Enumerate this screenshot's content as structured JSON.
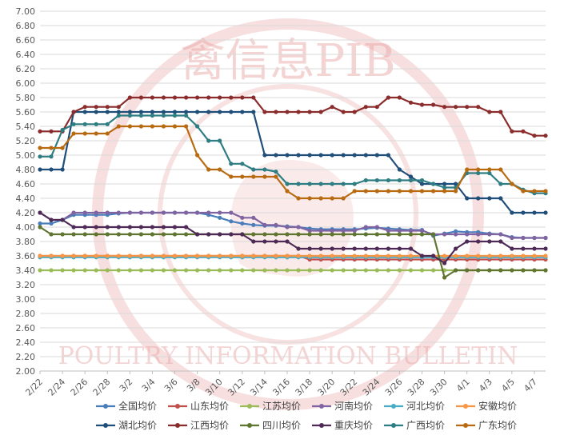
{
  "watermark": {
    "top_text": "禽信息PIB",
    "bottom_text": "POULTRY INFORMATION BULLETIN",
    "color": "#e9a3a3"
  },
  "chart_data": {
    "type": "line",
    "ylim": [
      2.0,
      7.0
    ],
    "ystep": 0.2,
    "y_ticks": [
      "2.00",
      "2.20",
      "2.40",
      "2.60",
      "2.80",
      "3.00",
      "3.20",
      "3.40",
      "3.60",
      "3.80",
      "4.00",
      "4.20",
      "4.40",
      "4.60",
      "4.80",
      "5.00",
      "5.20",
      "5.40",
      "5.60",
      "5.80",
      "6.00",
      "6.20",
      "6.40",
      "6.60",
      "6.80",
      "7.00"
    ],
    "x_tick_labels": [
      "2/22",
      "2/24",
      "2/26",
      "2/28",
      "3/2",
      "3/4",
      "3/6",
      "3/8",
      "3/10",
      "3/12",
      "3/14",
      "3/16",
      "3/18",
      "3/20",
      "3/22",
      "3/24",
      "3/26",
      "3/28",
      "3/30",
      "4/1",
      "4/3",
      "4/5",
      "4/7"
    ],
    "x_count": 46,
    "grid": true,
    "legend_position": "bottom",
    "series": [
      {
        "name": "全国均价",
        "color": "#4a7ebb",
        "values": [
          4.05,
          4.05,
          4.1,
          4.17,
          4.17,
          4.17,
          4.17,
          4.19,
          4.2,
          4.2,
          4.2,
          4.2,
          4.2,
          4.2,
          4.2,
          4.17,
          4.13,
          4.08,
          4.05,
          4.03,
          4.02,
          4.02,
          4.01,
          4.0,
          3.98,
          3.97,
          3.97,
          3.97,
          3.97,
          3.98,
          3.99,
          3.98,
          3.97,
          3.96,
          3.96,
          3.88,
          3.91,
          3.94,
          3.93,
          3.93,
          3.91,
          3.9,
          3.86,
          3.85,
          3.85,
          3.85
        ]
      },
      {
        "name": "山东均价",
        "color": "#c0504d",
        "values": [
          3.6,
          3.6,
          3.6,
          3.6,
          3.6,
          3.6,
          3.6,
          3.6,
          3.6,
          3.6,
          3.6,
          3.6,
          3.6,
          3.6,
          3.6,
          3.6,
          3.6,
          3.6,
          3.6,
          3.6,
          3.6,
          3.6,
          3.6,
          3.6,
          3.55,
          3.55,
          3.55,
          3.55,
          3.55,
          3.55,
          3.55,
          3.55,
          3.55,
          3.55,
          3.55,
          3.55,
          3.55,
          3.55,
          3.55,
          3.55,
          3.55,
          3.55,
          3.55,
          3.55,
          3.55,
          3.55
        ]
      },
      {
        "name": "江苏均价",
        "color": "#9bbb59",
        "values": [
          3.4,
          3.4,
          3.4,
          3.4,
          3.4,
          3.4,
          3.4,
          3.4,
          3.4,
          3.4,
          3.4,
          3.4,
          3.4,
          3.4,
          3.4,
          3.4,
          3.4,
          3.4,
          3.4,
          3.4,
          3.4,
          3.4,
          3.4,
          3.4,
          3.4,
          3.4,
          3.4,
          3.4,
          3.4,
          3.4,
          3.4,
          3.4,
          3.4,
          3.4,
          3.4,
          3.4,
          3.4,
          3.4,
          3.4,
          3.4,
          3.4,
          3.4,
          3.4,
          3.4,
          3.4,
          3.4
        ]
      },
      {
        "name": "河南均价",
        "color": "#8064a2",
        "values": [
          4.2,
          4.1,
          4.1,
          4.2,
          4.2,
          4.2,
          4.2,
          4.2,
          4.2,
          4.2,
          4.2,
          4.2,
          4.2,
          4.2,
          4.2,
          4.2,
          4.2,
          4.2,
          4.13,
          4.13,
          4.03,
          4.03,
          4.0,
          4.0,
          3.95,
          3.95,
          3.95,
          3.95,
          3.95,
          4.0,
          4.0,
          3.95,
          3.95,
          3.95,
          3.95,
          3.9,
          3.9,
          3.9,
          3.9,
          3.9,
          3.9,
          3.9,
          3.85,
          3.85,
          3.85,
          3.85
        ]
      },
      {
        "name": "河北均价",
        "color": "#4bacc6",
        "values": [
          3.58,
          3.58,
          3.58,
          3.58,
          3.58,
          3.58,
          3.58,
          3.58,
          3.58,
          3.58,
          3.58,
          3.58,
          3.58,
          3.58,
          3.58,
          3.58,
          3.58,
          3.58,
          3.58,
          3.58,
          3.58,
          3.58,
          3.58,
          3.58,
          3.58,
          3.58,
          3.58,
          3.58,
          3.58,
          3.58,
          3.58,
          3.58,
          3.58,
          3.58,
          3.58,
          3.58,
          3.58,
          3.58,
          3.58,
          3.58,
          3.58,
          3.58,
          3.58,
          3.58,
          3.58,
          3.58
        ]
      },
      {
        "name": "安徽均价",
        "color": "#f79646",
        "values": [
          3.6,
          3.6,
          3.6,
          3.6,
          3.6,
          3.6,
          3.6,
          3.6,
          3.6,
          3.6,
          3.6,
          3.6,
          3.6,
          3.6,
          3.6,
          3.6,
          3.6,
          3.6,
          3.6,
          3.6,
          3.6,
          3.6,
          3.6,
          3.6,
          3.6,
          3.6,
          3.6,
          3.6,
          3.6,
          3.6,
          3.6,
          3.6,
          3.6,
          3.6,
          3.6,
          3.6,
          3.6,
          3.6,
          3.6,
          3.6,
          3.6,
          3.6,
          3.6,
          3.6,
          3.6,
          3.6
        ]
      },
      {
        "name": "湖北均价",
        "color": "#1f4e79",
        "values": [
          4.8,
          4.8,
          4.8,
          5.6,
          5.6,
          5.6,
          5.6,
          5.6,
          5.6,
          5.6,
          5.6,
          5.6,
          5.6,
          5.6,
          5.6,
          5.6,
          5.6,
          5.6,
          5.6,
          5.6,
          5.0,
          5.0,
          5.0,
          5.0,
          5.0,
          5.0,
          5.0,
          5.0,
          5.0,
          5.0,
          5.0,
          5.0,
          4.8,
          4.7,
          4.6,
          4.6,
          4.6,
          4.6,
          4.4,
          4.4,
          4.4,
          4.4,
          4.2,
          4.2,
          4.2,
          4.2
        ]
      },
      {
        "name": "江西均价",
        "color": "#8b2c2c",
        "values": [
          5.33,
          5.33,
          5.33,
          5.6,
          5.67,
          5.67,
          5.67,
          5.67,
          5.8,
          5.8,
          5.8,
          5.8,
          5.8,
          5.8,
          5.8,
          5.8,
          5.8,
          5.8,
          5.8,
          5.8,
          5.6,
          5.6,
          5.6,
          5.6,
          5.6,
          5.6,
          5.67,
          5.6,
          5.6,
          5.67,
          5.67,
          5.8,
          5.8,
          5.73,
          5.7,
          5.7,
          5.67,
          5.67,
          5.67,
          5.67,
          5.6,
          5.6,
          5.33,
          5.33,
          5.27,
          5.27
        ]
      },
      {
        "name": "四川均价",
        "color": "#5f7530",
        "values": [
          4.0,
          3.9,
          3.9,
          3.9,
          3.9,
          3.9,
          3.9,
          3.9,
          3.9,
          3.9,
          3.9,
          3.9,
          3.9,
          3.9,
          3.9,
          3.9,
          3.9,
          3.9,
          3.9,
          3.9,
          3.9,
          3.9,
          3.9,
          3.9,
          3.9,
          3.9,
          3.9,
          3.9,
          3.9,
          3.9,
          3.9,
          3.9,
          3.9,
          3.9,
          3.9,
          3.9,
          3.3,
          3.4,
          3.4,
          3.4,
          3.4,
          3.4,
          3.4,
          3.4,
          3.4,
          3.4
        ]
      },
      {
        "name": "重庆均价",
        "color": "#4e2a56",
        "values": [
          4.2,
          4.1,
          4.1,
          4.0,
          4.0,
          4.0,
          4.0,
          4.0,
          4.0,
          4.0,
          4.0,
          4.0,
          4.0,
          4.0,
          3.9,
          3.9,
          3.9,
          3.9,
          3.9,
          3.8,
          3.8,
          3.8,
          3.8,
          3.7,
          3.7,
          3.7,
          3.7,
          3.7,
          3.7,
          3.7,
          3.7,
          3.7,
          3.7,
          3.7,
          3.6,
          3.6,
          3.5,
          3.7,
          3.8,
          3.8,
          3.8,
          3.8,
          3.7,
          3.7,
          3.7,
          3.7
        ]
      },
      {
        "name": "广西均价",
        "color": "#2e7d83",
        "values": [
          4.98,
          4.98,
          5.35,
          5.43,
          5.43,
          5.43,
          5.43,
          5.55,
          5.55,
          5.55,
          5.55,
          5.55,
          5.55,
          5.55,
          5.4,
          5.2,
          5.2,
          4.88,
          4.88,
          4.8,
          4.8,
          4.77,
          4.6,
          4.6,
          4.6,
          4.6,
          4.6,
          4.6,
          4.6,
          4.65,
          4.65,
          4.65,
          4.65,
          4.65,
          4.65,
          4.6,
          4.55,
          4.55,
          4.75,
          4.75,
          4.75,
          4.6,
          4.6,
          4.52,
          4.47,
          4.47
        ]
      },
      {
        "name": "广东均价",
        "color": "#b86a10",
        "values": [
          5.1,
          5.1,
          5.1,
          5.3,
          5.3,
          5.3,
          5.3,
          5.4,
          5.4,
          5.4,
          5.4,
          5.4,
          5.4,
          5.4,
          5.0,
          4.8,
          4.8,
          4.7,
          4.7,
          4.7,
          4.7,
          4.7,
          4.5,
          4.4,
          4.4,
          4.4,
          4.4,
          4.4,
          4.5,
          4.5,
          4.5,
          4.5,
          4.5,
          4.5,
          4.5,
          4.5,
          4.5,
          4.5,
          4.8,
          4.8,
          4.8,
          4.8,
          4.6,
          4.5,
          4.5,
          4.5
        ]
      }
    ]
  }
}
